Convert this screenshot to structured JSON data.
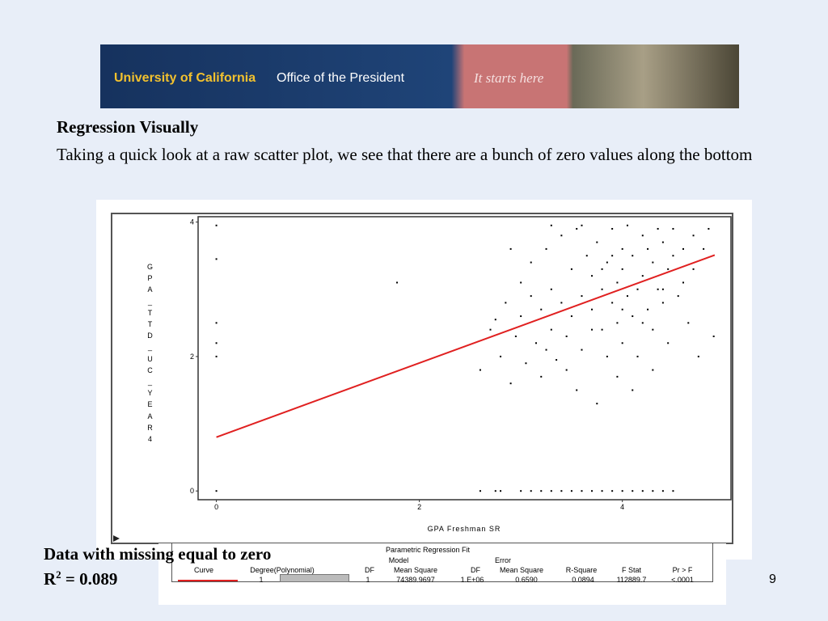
{
  "banner": {
    "org": "University of California",
    "office": "Office of the President",
    "tagline": "It starts here"
  },
  "heading": "Regression Visually",
  "body": "Taking a quick look at a raw scatter plot, we see that there are a bunch of zero values along the bottom",
  "chart_data": {
    "type": "scatter",
    "color": "#000000",
    "x_label": "GPA Freshman SR",
    "y_label": "GPA_TTD_UC_YEAR4",
    "xlim": [
      -0.18,
      5.07
    ],
    "ylim": [
      -0.13,
      4.08
    ],
    "xticks": [
      0,
      2,
      4
    ],
    "yticks": [
      0,
      2,
      4
    ],
    "grid": false,
    "x": [
      0,
      0,
      0,
      0,
      0,
      0,
      1.78,
      2.6,
      2.7,
      2.75,
      2.8,
      2.85,
      2.9,
      2.95,
      3.0,
      3.0,
      3.05,
      3.1,
      3.1,
      3.15,
      3.2,
      3.2,
      3.25,
      3.3,
      3.3,
      3.35,
      3.4,
      3.4,
      3.45,
      3.5,
      3.5,
      3.55,
      3.55,
      3.6,
      3.6,
      3.65,
      3.7,
      3.7,
      3.75,
      3.75,
      3.8,
      3.8,
      3.85,
      3.85,
      3.9,
      3.9,
      3.95,
      3.95,
      4.0,
      4.0,
      4.0,
      4.05,
      4.05,
      4.1,
      4.1,
      4.15,
      4.15,
      4.2,
      4.2,
      4.25,
      4.25,
      4.3,
      4.3,
      4.35,
      4.35,
      4.4,
      4.4,
      4.45,
      4.45,
      4.5,
      4.5,
      4.55,
      4.6,
      4.6,
      4.65,
      4.7,
      4.7,
      4.75,
      4.8,
      4.85,
      4.9,
      3.3,
      3.6,
      3.95,
      4.1,
      3.45,
      4.3,
      3.25,
      2.9,
      3.7,
      3.9,
      4.2,
      4.4,
      4.0,
      3.8,
      2.6,
      2.75,
      2.8,
      3.0,
      3.1,
      3.2,
      3.3,
      3.4,
      3.5,
      3.6,
      3.7,
      3.8,
      3.9,
      4.0,
      4.1,
      4.2,
      4.3,
      4.4,
      4.5
    ],
    "y": [
      3.95,
      3.45,
      2.5,
      2.2,
      2.0,
      0,
      3.1,
      1.8,
      2.4,
      2.55,
      2.0,
      2.8,
      1.6,
      2.3,
      3.1,
      2.6,
      1.9,
      2.9,
      3.4,
      2.2,
      1.7,
      2.7,
      3.6,
      2.4,
      3.0,
      1.95,
      2.8,
      3.8,
      2.3,
      3.3,
      2.6,
      1.5,
      3.9,
      2.9,
      2.1,
      3.5,
      2.7,
      3.2,
      1.3,
      3.7,
      2.4,
      3.0,
      3.4,
      2.0,
      2.8,
      3.9,
      3.1,
      2.5,
      3.6,
      2.2,
      3.3,
      2.9,
      3.95,
      2.6,
      3.5,
      3.0,
      2.0,
      3.8,
      3.2,
      2.7,
      3.6,
      3.4,
      2.4,
      3.9,
      3.0,
      2.8,
      3.7,
      3.3,
      2.2,
      3.5,
      3.9,
      2.9,
      3.6,
      3.1,
      2.5,
      3.8,
      3.3,
      2.0,
      3.6,
      3.9,
      2.3,
      3.95,
      3.95,
      1.7,
      1.5,
      1.8,
      1.8,
      2.1,
      3.6,
      2.4,
      3.5,
      2.5,
      3.0,
      2.7,
      3.3,
      0,
      0,
      0,
      0,
      0,
      0,
      0,
      0,
      0,
      0,
      0,
      0,
      0,
      0,
      0,
      0,
      0,
      0,
      0
    ],
    "fit": {
      "color": "#e02020",
      "x": [
        0,
        4.91
      ],
      "y": [
        0.8,
        3.51
      ]
    }
  },
  "table": {
    "title": "Parametric Regression Fit",
    "groups": [
      "Model",
      "Error"
    ],
    "headers": [
      "Curve",
      "Degree(Polynomial)",
      "DF",
      "Mean Square",
      "DF",
      "Mean Square",
      "R-Square",
      "F Stat",
      "Pr > F"
    ],
    "curve_color": "#e02020",
    "row": [
      "1",
      "1",
      "74389.9697",
      "1.E+06",
      "0.6590",
      "0.0894",
      "112889.7",
      "<.0001"
    ]
  },
  "footnote": {
    "line1": "Data with missing equal to zero",
    "r": "R",
    "sup": "2",
    "rest": " = 0.089"
  },
  "page_number": "9"
}
